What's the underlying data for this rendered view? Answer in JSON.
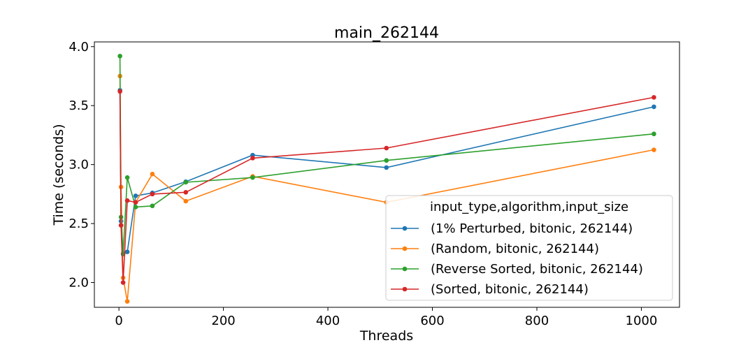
{
  "chart_data": {
    "type": "line",
    "title": "main_262144",
    "xlabel": "Threads",
    "ylabel": "Time (seconds)",
    "xlim": [
      -47,
      1073
    ],
    "ylim": [
      1.79,
      4.04
    ],
    "xticks": [
      0,
      200,
      400,
      600,
      800,
      1000
    ],
    "yticks": [
      2.0,
      2.5,
      3.0,
      3.5,
      4.0
    ],
    "xtick_labels": [
      "0",
      "200",
      "400",
      "600",
      "800",
      "1000"
    ],
    "ytick_labels": [
      "2.0",
      "2.5",
      "3.0",
      "3.5",
      "4.0"
    ],
    "x": [
      2,
      4,
      8,
      16,
      32,
      64,
      128,
      256,
      512,
      1024
    ],
    "legend": {
      "title": "input_type,algorithm,input_size",
      "placement": "lower right"
    },
    "series": [
      {
        "name": "(1% Perturbed, bitonic, 262144)",
        "color": "#1f77b4",
        "values": [
          3.63,
          2.52,
          2.24,
          2.26,
          2.735,
          2.76,
          2.855,
          3.08,
          2.975,
          3.49
        ]
      },
      {
        "name": "(Random, bitonic, 262144)",
        "color": "#ff7f0e",
        "values": [
          3.75,
          2.81,
          2.04,
          1.84,
          2.68,
          2.92,
          2.69,
          2.9,
          2.68,
          3.125
        ]
      },
      {
        "name": "(Reverse Sorted, bitonic, 262144)",
        "color": "#2ca02c",
        "values": [
          3.92,
          2.555,
          2.245,
          2.89,
          2.64,
          2.65,
          2.85,
          2.89,
          3.035,
          3.26
        ]
      },
      {
        "name": "(Sorted, bitonic, 262144)",
        "color": "#d62728",
        "values": [
          3.62,
          2.485,
          2.0,
          2.695,
          2.68,
          2.75,
          2.765,
          3.055,
          3.14,
          3.57
        ]
      }
    ]
  }
}
